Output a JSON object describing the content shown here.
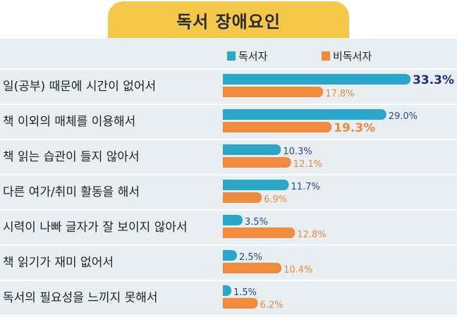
{
  "title": "독서 장애요인",
  "chart_data": {
    "type": "bar",
    "orientation": "horizontal",
    "title": "독서 장애요인",
    "categories": [
      "일(공부) 때문에 시간이 없어서",
      "책 이외의 매체를 이용해서",
      "책 읽는 습관이 들지 않아서",
      "다른 여가/취미 활동을 해서",
      "시력이 나빠 글자가 잘 보이지 않아서",
      "책 읽기가 재미 없어서",
      "독서의 필요성을 느끼지 못해서"
    ],
    "series": [
      {
        "name": "독서자",
        "color": "#2ba6cb",
        "label_color": "#1f2f7a",
        "values": [
          33.3,
          29.0,
          10.3,
          11.7,
          3.5,
          2.5,
          1.5
        ],
        "labels": [
          "33.3%",
          "29.0%",
          "10.3%",
          "11.7%",
          "3.5%",
          "2.5%",
          "1.5%"
        ]
      },
      {
        "name": "비독서자",
        "color": "#f08a3c",
        "label_color": "#f08a3c",
        "values": [
          17.8,
          19.3,
          12.1,
          6.9,
          12.8,
          10.4,
          6.2
        ],
        "labels": [
          "17.8%",
          "19.3%",
          "12.1%",
          "6.9%",
          "12.8%",
          "10.4%",
          "6.2%"
        ]
      }
    ],
    "highlight": [
      {
        "series": 0,
        "index": 0
      },
      {
        "series": 1,
        "index": 1
      }
    ],
    "legend_position": "top-right",
    "grid": false
  }
}
